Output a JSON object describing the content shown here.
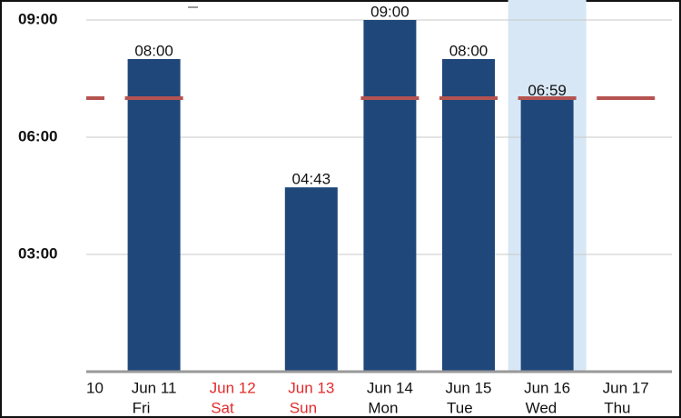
{
  "chart_data": {
    "type": "bar",
    "categories": [
      "10",
      "Jun 11",
      "Jun 12",
      "Jun 13",
      "Jun 14",
      "Jun 15",
      "Jun 16",
      "Jun 17"
    ],
    "weekdays": [
      null,
      "Fri",
      "Sat",
      "Sun",
      "Mon",
      "Tue",
      "Wed",
      "Thu"
    ],
    "label_colors": [
      "#111111",
      "#111111",
      "#e32b2b",
      "#e32b2b",
      "#111111",
      "#111111",
      "#111111",
      "#111111"
    ],
    "values": [
      null,
      8,
      null,
      4.717,
      9,
      8,
      6.983,
      null
    ],
    "value_labels": [
      null,
      "08:00",
      null,
      "04:43",
      "09:00",
      "08:00",
      "06:59",
      null
    ],
    "color": "#1f477a",
    "target": [
      7,
      7,
      null,
      null,
      7,
      7,
      7,
      7
    ],
    "target_color": "#b55350",
    "highlight_index": 6,
    "highlight_color": "#d7e7f5",
    "ylim": [
      0,
      9.5
    ],
    "yticks": [
      {
        "value": 3,
        "label": "03:00"
      },
      {
        "value": 6,
        "label": "06:00"
      },
      {
        "value": 9,
        "label": "09:00"
      }
    ],
    "grid": true
  }
}
